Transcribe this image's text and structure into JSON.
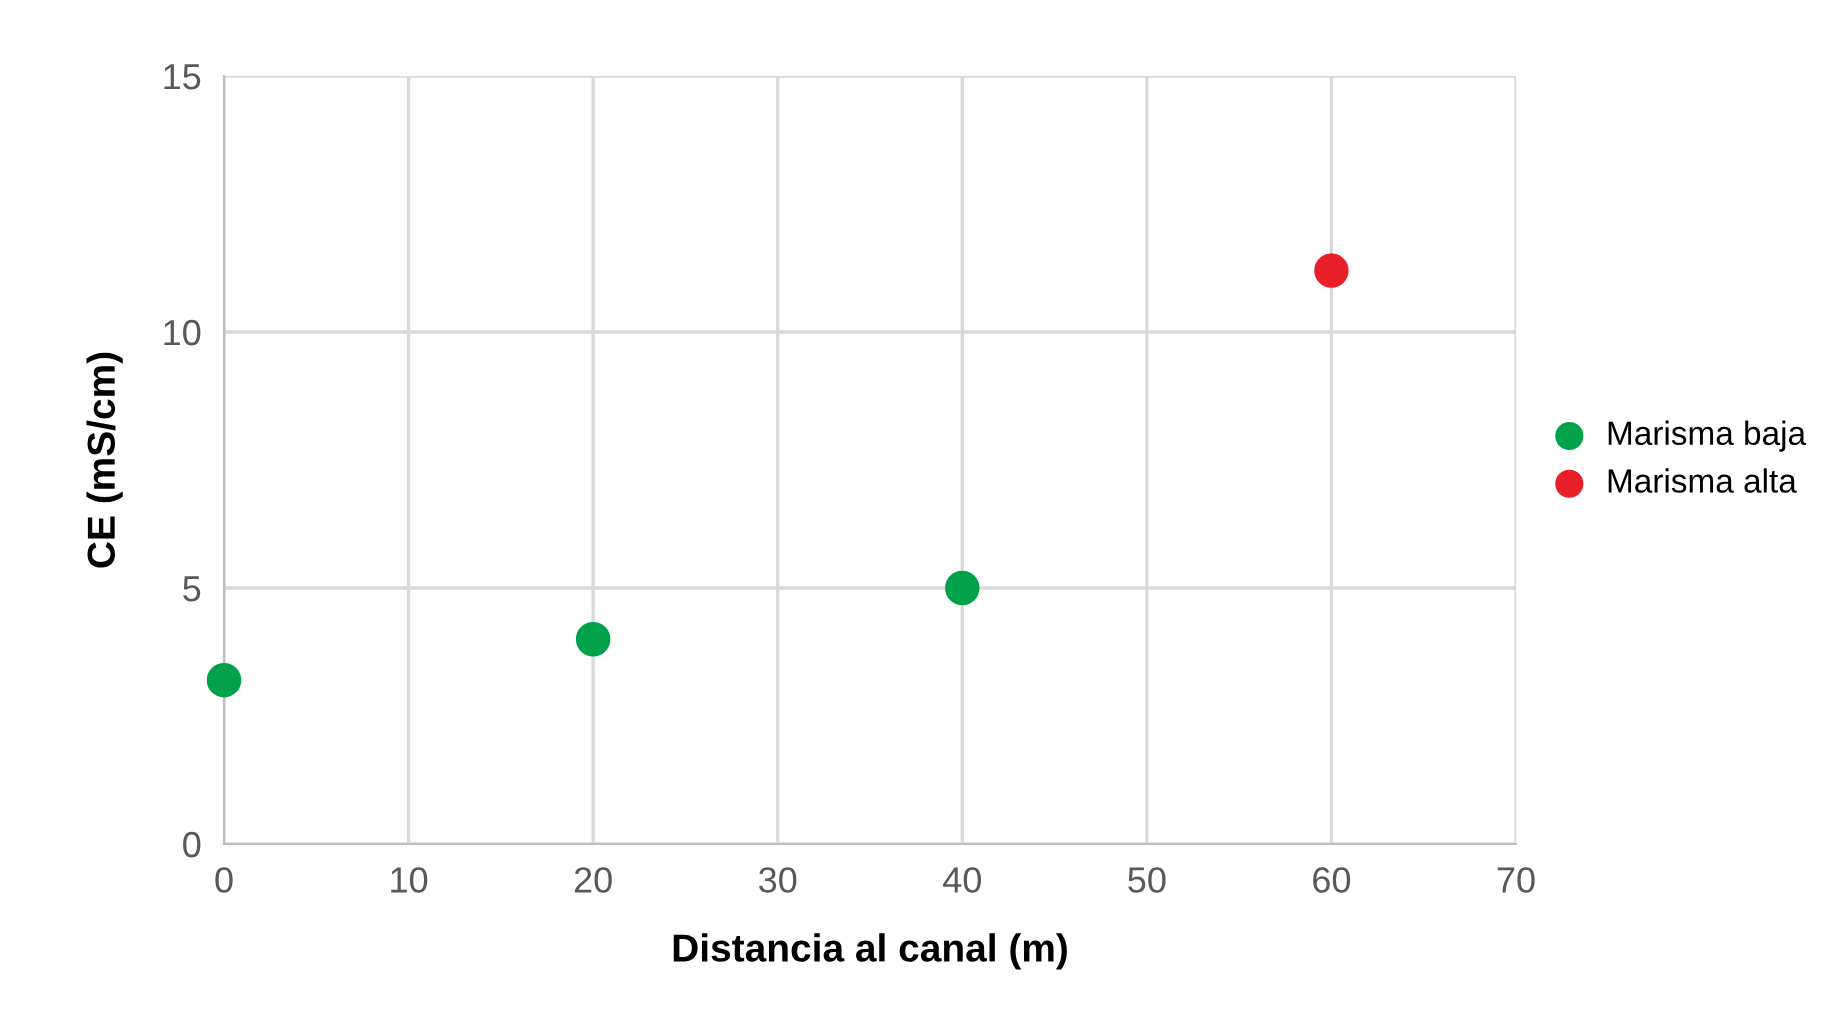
{
  "chart_data": {
    "type": "scatter",
    "xlabel": "Distancia al canal (m)",
    "ylabel": "CE (mS/cm)",
    "series": [
      {
        "name": "Marisma baja",
        "color": "#00a14b",
        "x": [
          0,
          20,
          40
        ],
        "values": [
          3.2,
          4.0,
          5.0
        ]
      },
      {
        "name": "Marisma alta",
        "color": "#e8202a",
        "x": [
          60
        ],
        "values": [
          11.2
        ]
      }
    ],
    "xlim": [
      0,
      70
    ],
    "xticks": [
      0,
      10,
      20,
      30,
      40,
      50,
      60,
      70
    ],
    "ylim": [
      0,
      15
    ],
    "yticks": [
      0,
      5,
      10,
      15
    ],
    "grid": true,
    "legend": "right",
    "marker": "circle"
  }
}
